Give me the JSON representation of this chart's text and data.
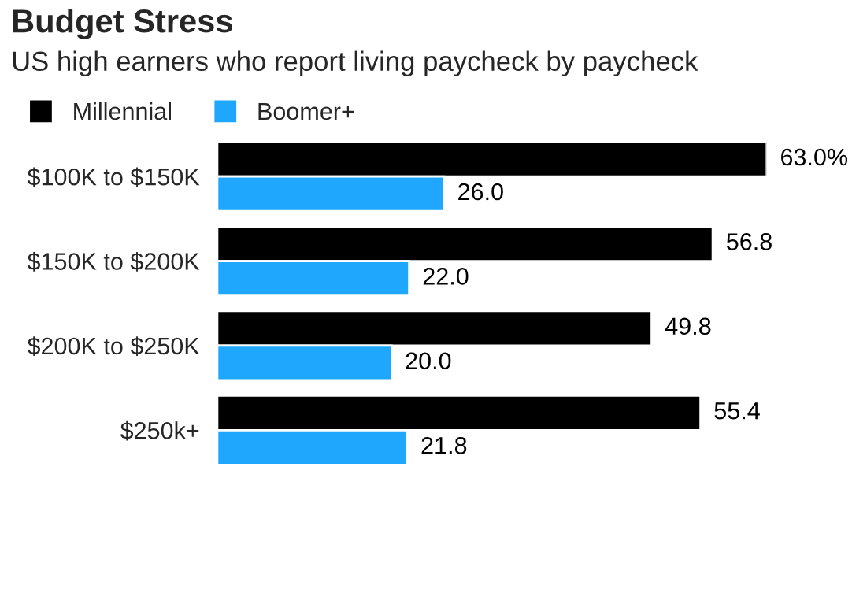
{
  "chart_data": {
    "type": "bar",
    "orientation": "horizontal",
    "title": "Budget Stress",
    "subtitle": "US high earners who report living paycheck by paycheck",
    "categories": [
      "$100K to $150K",
      "$150K to $200K",
      "$200K to $250K",
      "$250k+"
    ],
    "series": [
      {
        "name": "Millennial",
        "color": "#000000",
        "values": [
          63.0,
          56.8,
          49.8,
          55.4
        ],
        "value_labels": [
          "63.0%",
          "56.8",
          "49.8",
          "55.4"
        ]
      },
      {
        "name": "Boomer+",
        "color": "#1ea7fd",
        "values": [
          26.0,
          22.0,
          20.0,
          21.8
        ],
        "value_labels": [
          "26.0",
          "22.0",
          "20.0",
          "21.8"
        ]
      }
    ],
    "legend": "top left",
    "grid": false
  }
}
